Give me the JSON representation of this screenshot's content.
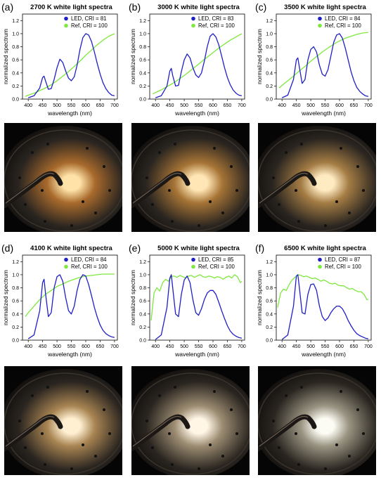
{
  "chart_data": [
    {
      "type": "line",
      "panel_label": "(a)",
      "title": "2700 K white light spectra",
      "xlabel": "wavelength (nm)",
      "ylabel": "normalized spectrum",
      "xlim": [
        380,
        710
      ],
      "ylim": [
        0,
        1.3
      ],
      "xticks": [
        "400",
        "450",
        "500",
        "550",
        "600",
        "650",
        "700"
      ],
      "yticks": [
        "0.0",
        "0.2",
        "0.4",
        "0.6",
        "0.8",
        "1.0",
        "1.2"
      ],
      "legend_placement": "top-right",
      "series": [
        {
          "name": "LED, CRI = 81",
          "color": "#1f1fc8",
          "x": [
            400,
            420,
            440,
            450,
            455,
            460,
            470,
            480,
            490,
            500,
            510,
            520,
            530,
            540,
            550,
            560,
            570,
            580,
            590,
            600,
            610,
            620,
            630,
            640,
            650,
            660,
            670,
            680,
            690,
            700
          ],
          "y": [
            0.02,
            0.05,
            0.17,
            0.33,
            0.35,
            0.28,
            0.15,
            0.16,
            0.3,
            0.48,
            0.61,
            0.56,
            0.43,
            0.32,
            0.28,
            0.34,
            0.52,
            0.76,
            0.94,
            1.0,
            0.98,
            0.88,
            0.72,
            0.54,
            0.38,
            0.25,
            0.16,
            0.1,
            0.06,
            0.05
          ]
        },
        {
          "name": "Ref, CRI = 100",
          "color": "#7ee83c",
          "x": [
            390,
            400,
            420,
            440,
            460,
            480,
            500,
            520,
            540,
            560,
            580,
            600,
            620,
            640,
            660,
            680,
            700
          ],
          "y": [
            0.04,
            0.06,
            0.09,
            0.13,
            0.17,
            0.22,
            0.28,
            0.35,
            0.42,
            0.5,
            0.58,
            0.67,
            0.75,
            0.83,
            0.9,
            0.96,
            1.0
          ]
        }
      ]
    },
    {
      "type": "line",
      "panel_label": "(b)",
      "title": "3000 K white light spectra",
      "xlabel": "wavelength (nm)",
      "ylabel": "normalized spectrum",
      "xlim": [
        380,
        710
      ],
      "ylim": [
        0,
        1.3
      ],
      "xticks": [
        "400",
        "450",
        "500",
        "550",
        "600",
        "650",
        "700"
      ],
      "yticks": [
        "0.0",
        "0.2",
        "0.4",
        "0.6",
        "0.8",
        "1.0",
        "1.2"
      ],
      "legend_placement": "top-right",
      "series": [
        {
          "name": "LED, CRI = 83",
          "color": "#1f1fc8",
          "x": [
            400,
            420,
            440,
            450,
            455,
            460,
            470,
            480,
            490,
            500,
            510,
            520,
            530,
            540,
            550,
            560,
            570,
            580,
            590,
            600,
            610,
            620,
            630,
            640,
            650,
            660,
            670,
            680,
            690,
            700
          ],
          "y": [
            0.02,
            0.05,
            0.2,
            0.43,
            0.47,
            0.36,
            0.2,
            0.21,
            0.42,
            0.6,
            0.69,
            0.63,
            0.48,
            0.37,
            0.33,
            0.4,
            0.58,
            0.8,
            0.96,
            1.0,
            0.95,
            0.83,
            0.66,
            0.48,
            0.33,
            0.22,
            0.14,
            0.09,
            0.06,
            0.05
          ]
        },
        {
          "name": "Ref, CRI = 100",
          "color": "#7ee83c",
          "x": [
            390,
            400,
            420,
            440,
            460,
            480,
            500,
            520,
            540,
            560,
            580,
            600,
            620,
            640,
            660,
            680,
            700
          ],
          "y": [
            0.08,
            0.1,
            0.14,
            0.19,
            0.24,
            0.3,
            0.36,
            0.43,
            0.5,
            0.57,
            0.64,
            0.71,
            0.78,
            0.84,
            0.9,
            0.95,
            1.0
          ]
        }
      ]
    },
    {
      "type": "line",
      "panel_label": "(c)",
      "title": "3500 K white light spectra",
      "xlabel": "wavelength (nm)",
      "ylabel": "normalized spectrum",
      "xlim": [
        380,
        710
      ],
      "ylim": [
        0,
        1.3
      ],
      "xticks": [
        "400",
        "450",
        "500",
        "550",
        "600",
        "650",
        "700"
      ],
      "yticks": [
        "0.0",
        "0.2",
        "0.4",
        "0.6",
        "0.8",
        "1.0",
        "1.2"
      ],
      "legend_placement": "top-right",
      "series": [
        {
          "name": "LED, CRI = 84",
          "color": "#1f1fc8",
          "x": [
            400,
            420,
            440,
            450,
            455,
            460,
            470,
            480,
            490,
            500,
            510,
            520,
            530,
            540,
            550,
            560,
            570,
            580,
            590,
            600,
            610,
            620,
            630,
            640,
            650,
            660,
            670,
            680,
            690,
            700
          ],
          "y": [
            0.02,
            0.06,
            0.3,
            0.6,
            0.63,
            0.5,
            0.24,
            0.3,
            0.6,
            0.76,
            0.8,
            0.72,
            0.52,
            0.38,
            0.35,
            0.45,
            0.66,
            0.87,
            0.98,
            1.0,
            0.93,
            0.78,
            0.6,
            0.42,
            0.28,
            0.18,
            0.12,
            0.08,
            0.05,
            0.04
          ]
        },
        {
          "name": "Ref, CRI = 100",
          "color": "#7ee83c",
          "x": [
            390,
            400,
            420,
            440,
            460,
            480,
            500,
            520,
            540,
            560,
            580,
            600,
            620,
            640,
            660,
            680,
            700
          ],
          "y": [
            0.17,
            0.21,
            0.28,
            0.35,
            0.43,
            0.5,
            0.58,
            0.65,
            0.72,
            0.78,
            0.84,
            0.89,
            0.93,
            0.96,
            0.99,
            1.01,
            1.02
          ]
        }
      ]
    },
    {
      "type": "line",
      "panel_label": "(d)",
      "title": "4100 K white light spectra",
      "xlabel": "wavelength (nm)",
      "ylabel": "normalized spectrum",
      "xlim": [
        380,
        710
      ],
      "ylim": [
        0,
        1.3
      ],
      "xticks": [
        "400",
        "450",
        "500",
        "550",
        "600",
        "650",
        "700"
      ],
      "yticks": [
        "0.0",
        "0.2",
        "0.4",
        "0.6",
        "0.8",
        "1.0",
        "1.2"
      ],
      "legend_placement": "top-right",
      "series": [
        {
          "name": "LED, CRI = 84",
          "color": "#1f1fc8",
          "x": [
            400,
            420,
            440,
            450,
            455,
            460,
            470,
            480,
            490,
            500,
            510,
            520,
            530,
            540,
            550,
            560,
            570,
            580,
            590,
            600,
            610,
            620,
            630,
            640,
            650,
            660,
            670,
            680,
            690,
            700
          ],
          "y": [
            0.02,
            0.08,
            0.45,
            0.88,
            0.93,
            0.72,
            0.36,
            0.42,
            0.8,
            0.97,
            1.0,
            0.9,
            0.65,
            0.45,
            0.4,
            0.52,
            0.76,
            0.93,
            1.0,
            0.98,
            0.85,
            0.68,
            0.5,
            0.35,
            0.23,
            0.15,
            0.1,
            0.07,
            0.05,
            0.04
          ]
        },
        {
          "name": "Ref, CRI = 100",
          "color": "#7ee83c",
          "x": [
            390,
            400,
            420,
            440,
            460,
            480,
            500,
            520,
            540,
            560,
            580,
            600,
            620,
            640,
            660,
            680,
            700
          ],
          "y": [
            0.36,
            0.42,
            0.52,
            0.62,
            0.7,
            0.76,
            0.82,
            0.86,
            0.9,
            0.93,
            0.96,
            0.98,
            0.99,
            1.0,
            1.01,
            1.01,
            1.01
          ]
        }
      ]
    },
    {
      "type": "line",
      "panel_label": "(e)",
      "title": "5000 K white light spectra",
      "xlabel": "wavelength (nm)",
      "ylabel": "normalized spectrum",
      "xlim": [
        380,
        710
      ],
      "ylim": [
        0,
        1.3
      ],
      "xticks": [
        "400",
        "450",
        "500",
        "550",
        "600",
        "650",
        "700"
      ],
      "yticks": [
        "0.0",
        "0.2",
        "0.4",
        "0.6",
        "0.8",
        "1.0",
        "1.2"
      ],
      "legend_placement": "top-right",
      "series": [
        {
          "name": "LED, CRI = 85",
          "color": "#1f1fc8",
          "x": [
            400,
            420,
            440,
            450,
            455,
            460,
            470,
            480,
            490,
            500,
            510,
            520,
            530,
            540,
            550,
            560,
            570,
            580,
            590,
            600,
            610,
            620,
            630,
            640,
            650,
            660,
            670,
            680,
            690,
            700
          ],
          "y": [
            0.01,
            0.08,
            0.5,
            0.95,
            1.0,
            0.8,
            0.4,
            0.36,
            0.7,
            0.92,
            0.98,
            0.88,
            0.62,
            0.42,
            0.38,
            0.48,
            0.62,
            0.72,
            0.76,
            0.76,
            0.7,
            0.58,
            0.45,
            0.33,
            0.22,
            0.14,
            0.09,
            0.06,
            0.04,
            0.03
          ]
        },
        {
          "name": "Ref, CRI = 100",
          "color": "#7ee83c",
          "x": [
            385,
            395,
            405,
            415,
            425,
            435,
            445,
            455,
            465,
            475,
            485,
            495,
            505,
            515,
            525,
            535,
            545,
            555,
            565,
            575,
            585,
            595,
            605,
            615,
            625,
            635,
            645,
            655,
            665,
            675,
            685,
            695,
            700
          ],
          "y": [
            0.3,
            0.72,
            0.8,
            0.75,
            0.88,
            0.93,
            0.9,
            0.97,
            0.98,
            0.96,
            0.99,
            0.97,
            0.95,
            0.98,
            0.99,
            0.96,
            0.98,
            1.0,
            0.97,
            0.96,
            0.98,
            0.97,
            0.95,
            0.97,
            0.96,
            0.93,
            0.96,
            0.98,
            0.95,
            1.0,
            0.97,
            0.88,
            0.9
          ]
        }
      ]
    },
    {
      "type": "line",
      "panel_label": "(f)",
      "title": "6500 K white light spectra",
      "xlabel": "wavelength (nm)",
      "ylabel": "normalized spectrum",
      "xlim": [
        380,
        710
      ],
      "ylim": [
        0,
        1.3
      ],
      "xticks": [
        "400",
        "450",
        "500",
        "550",
        "600",
        "650",
        "700"
      ],
      "yticks": [
        "0.0",
        "0.2",
        "0.4",
        "0.6",
        "0.8",
        "1.0",
        "1.2"
      ],
      "legend_placement": "top-right",
      "series": [
        {
          "name": "LED, CRI = 87",
          "color": "#1f1fc8",
          "x": [
            400,
            420,
            440,
            450,
            455,
            460,
            470,
            480,
            490,
            500,
            510,
            520,
            530,
            540,
            550,
            560,
            570,
            580,
            590,
            600,
            610,
            620,
            630,
            640,
            650,
            660,
            670,
            680,
            690,
            700
          ],
          "y": [
            0.01,
            0.08,
            0.52,
            0.98,
            1.0,
            0.82,
            0.42,
            0.4,
            0.7,
            0.85,
            0.86,
            0.76,
            0.52,
            0.36,
            0.3,
            0.34,
            0.42,
            0.48,
            0.52,
            0.52,
            0.48,
            0.4,
            0.3,
            0.22,
            0.15,
            0.1,
            0.07,
            0.05,
            0.03,
            0.02
          ]
        },
        {
          "name": "Ref, CRI = 100",
          "color": "#7ee83c",
          "x": [
            385,
            395,
            405,
            415,
            425,
            435,
            445,
            455,
            465,
            475,
            485,
            495,
            505,
            515,
            525,
            535,
            545,
            555,
            565,
            575,
            585,
            595,
            605,
            615,
            625,
            635,
            645,
            655,
            665,
            675,
            685,
            695,
            700
          ],
          "y": [
            0.5,
            0.72,
            0.78,
            0.76,
            0.85,
            0.92,
            0.96,
            1.0,
            0.99,
            0.97,
            0.98,
            0.96,
            0.94,
            0.95,
            0.93,
            0.9,
            0.92,
            0.9,
            0.87,
            0.86,
            0.87,
            0.84,
            0.83,
            0.83,
            0.8,
            0.78,
            0.79,
            0.76,
            0.74,
            0.74,
            0.7,
            0.62,
            0.62
          ]
        }
      ]
    }
  ],
  "photos": [
    {
      "glow_color": "#ffe2a8",
      "halo_color": "#a86a2c"
    },
    {
      "glow_color": "#ffe6b4",
      "halo_color": "#a67436"
    },
    {
      "glow_color": "#ffebc2",
      "halo_color": "#a47c44"
    },
    {
      "glow_color": "#fff0d2",
      "halo_color": "#a88452"
    },
    {
      "glow_color": "#fff6e6",
      "halo_color": "#9c8c72"
    },
    {
      "glow_color": "#fdfcf4",
      "halo_color": "#9a9482"
    }
  ]
}
